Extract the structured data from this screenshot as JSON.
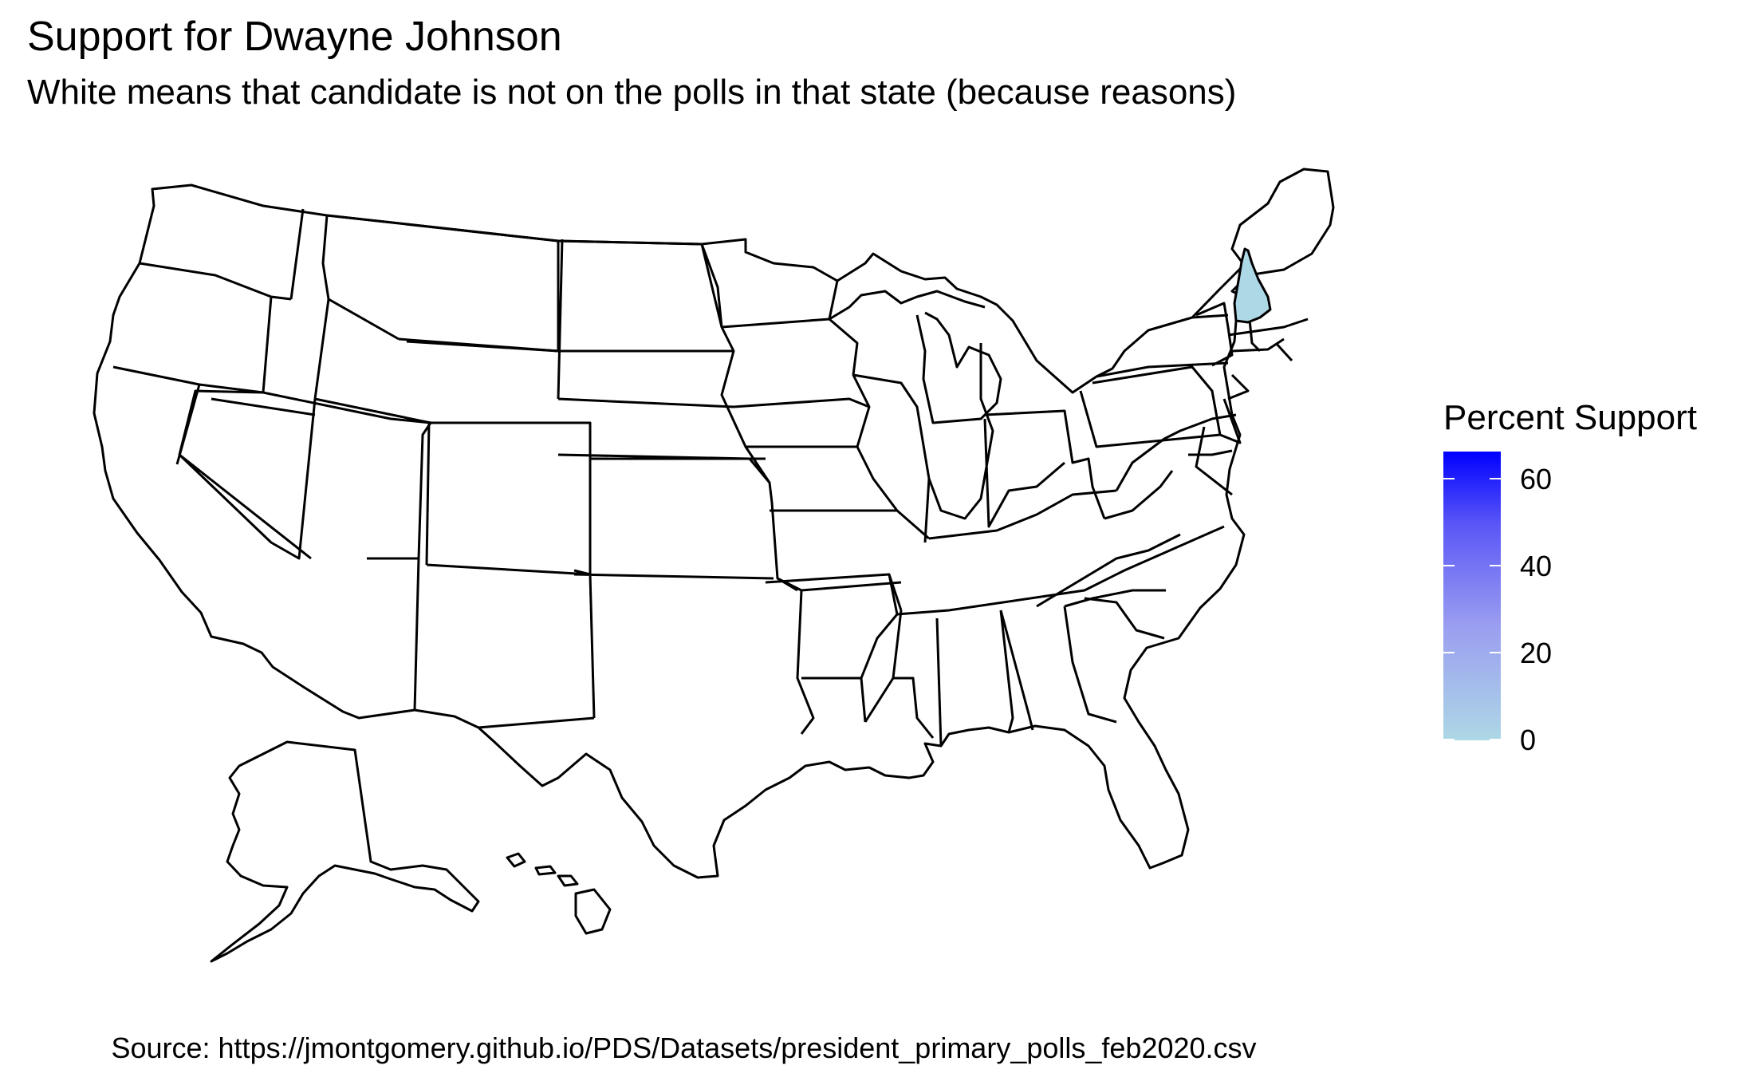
{
  "title": "Support for Dwayne Johnson",
  "subtitle": "White means that candidate is not on the polls in that state (because reasons)",
  "caption": "Source: https://jmontgomery.github.io/PDS/Datasets/president_primary_polls_feb2020.csv",
  "legend": {
    "title": "Percent Support",
    "ticks": [
      "0",
      "20",
      "40",
      "60"
    ],
    "range": [
      0,
      67
    ],
    "low_color": "#add8e6",
    "high_color": "#0000ff",
    "na_color": "#ffffff"
  },
  "map": {
    "region": "United States (states)",
    "variable": "Percent Support",
    "states_with_data": [
      {
        "state": "New Hampshire",
        "value": 0
      }
    ]
  }
}
